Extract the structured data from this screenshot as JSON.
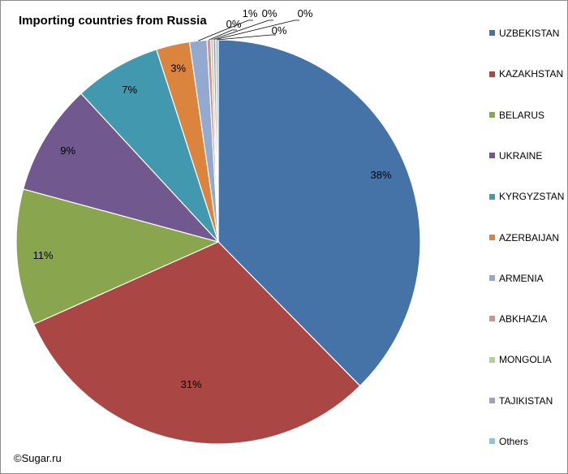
{
  "chart_data": {
    "type": "pie",
    "title": "Importing countries from Russia",
    "slices": [
      {
        "label": "UZBEKISTAN",
        "value": 38,
        "value_label": "38%",
        "color": "#4572a7"
      },
      {
        "label": "KAZAKHSTAN",
        "value": 31,
        "value_label": "31%",
        "color": "#aa4643"
      },
      {
        "label": "BELARUS",
        "value": 11,
        "value_label": "11%",
        "color": "#89a54e"
      },
      {
        "label": "UKRAINE",
        "value": 9,
        "value_label": "9%",
        "color": "#71588f"
      },
      {
        "label": "KYRGYZSTAN",
        "value": 7,
        "value_label": "7%",
        "color": "#4198af"
      },
      {
        "label": "AZERBAIJAN",
        "value": 2.7,
        "value_label": "3%",
        "color": "#db843d"
      },
      {
        "label": "ARMENIA",
        "value": 1.4,
        "value_label": "1%",
        "color": "#93a9cf"
      },
      {
        "label": "ABKHAZIA",
        "value": 0.3,
        "value_label": "0%",
        "color": "#d19392"
      },
      {
        "label": "MONGOLIA",
        "value": 0.2,
        "value_label": "0%",
        "color": "#b9cd96"
      },
      {
        "label": "TAJIKISTAN",
        "value": 0.2,
        "value_label": "0%",
        "color": "#a99bbd"
      },
      {
        "label": "Others",
        "value": 0.2,
        "value_label": "0%",
        "color": "#91c3d5"
      }
    ],
    "legend_position": "right"
  },
  "footer": {
    "copyright": "©Sugar.ru"
  }
}
